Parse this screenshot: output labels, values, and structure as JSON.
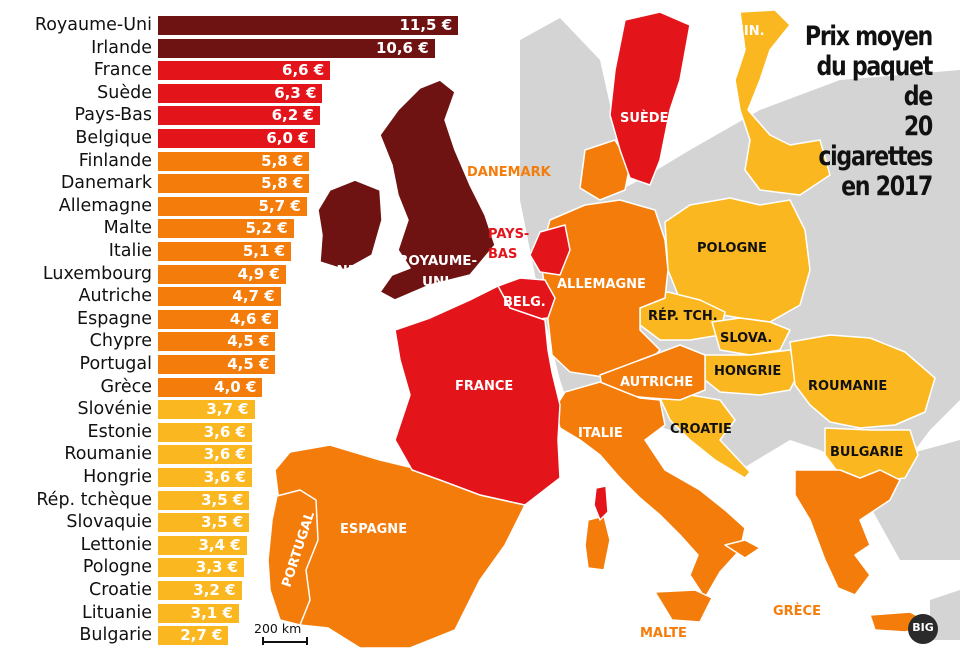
{
  "title_lines": [
    "Prix moyen",
    "du paquet de",
    "20 cigarettes",
    "en 2017"
  ],
  "scale_label": "200 km",
  "logo_text": "BIG",
  "colors": {
    "tier1": "#6e1212",
    "tier2": "#e3151b",
    "tier3": "#f47c0a",
    "tier4": "#fbb71f",
    "background_land": "#d4d4d4",
    "sea": "#ffffff"
  },
  "chart_data": {
    "type": "bar",
    "orientation": "horizontal",
    "categories": [
      "Royaume-Uni",
      "Irlande",
      "France",
      "Suède",
      "Pays-Bas",
      "Belgique",
      "Finlande",
      "Danemark",
      "Allemagne",
      "Malte",
      "Italie",
      "Luxembourg",
      "Autriche",
      "Espagne",
      "Chypre",
      "Portugal",
      "Grèce",
      "Slovénie",
      "Estonie",
      "Roumanie",
      "Hongrie",
      "Rép. tchèque",
      "Slovaquie",
      "Lettonie",
      "Pologne",
      "Croatie",
      "Lituanie",
      "Bulgarie"
    ],
    "values": [
      11.5,
      10.6,
      6.6,
      6.3,
      6.2,
      6.0,
      5.8,
      5.8,
      5.7,
      5.2,
      5.1,
      4.9,
      4.7,
      4.6,
      4.5,
      4.5,
      4.0,
      3.7,
      3.6,
      3.6,
      3.6,
      3.5,
      3.5,
      3.4,
      3.3,
      3.2,
      3.1,
      2.7
    ],
    "value_labels": [
      "11,5 €",
      "10,6 €",
      "6,6 €",
      "6,3 €",
      "6,2 €",
      "6,0 €",
      "5,8 €",
      "5,8 €",
      "5,7 €",
      "5,2 €",
      "5,1 €",
      "4,9 €",
      "4,7 €",
      "4,6 €",
      "4,5 €",
      "4,5 €",
      "4,0 €",
      "3,7 €",
      "3,6 €",
      "3,6 €",
      "3,6 €",
      "3,5 €",
      "3,5 €",
      "3,4 €",
      "3,3 €",
      "3,2 €",
      "3,1 €",
      "2,7 €"
    ],
    "tiers": [
      "tier1",
      "tier1",
      "tier2",
      "tier2",
      "tier2",
      "tier2",
      "tier3",
      "tier3",
      "tier3",
      "tier3",
      "tier3",
      "tier3",
      "tier3",
      "tier3",
      "tier3",
      "tier3",
      "tier3",
      "tier4",
      "tier4",
      "tier4",
      "tier4",
      "tier4",
      "tier4",
      "tier4",
      "tier4",
      "tier4",
      "tier4",
      "tier4"
    ],
    "title": "Prix moyen du paquet de 20 cigarettes en 2017"
  },
  "map_labels": {
    "irlande": "IRLANDE",
    "royaume_uni_1": "ROYAUME-",
    "royaume_uni_2": "UNI",
    "pays_bas_1": "PAYS-",
    "pays_bas_2": "BAS",
    "belgique": "BELG.",
    "france": "FRANCE",
    "espagne": "ESPAGNE",
    "portugal": "PORTUGAL",
    "italie": "ITALIE",
    "allemagne": "ALLEMAGNE",
    "danemark": "DANEMARK",
    "suede": "SUÈDE",
    "finlande": "FIN.",
    "pologne": "POLOGNE",
    "rep_tch": "RÉP. TCH.",
    "slovaquie": "SLOVA.",
    "autriche": "AUTRICHE",
    "hongrie": "HONGRIE",
    "roumanie": "ROUMANIE",
    "bulgarie": "BULGARIE",
    "croatie": "CROATIE",
    "grece": "GRÈCE",
    "malte": "MALTE"
  }
}
